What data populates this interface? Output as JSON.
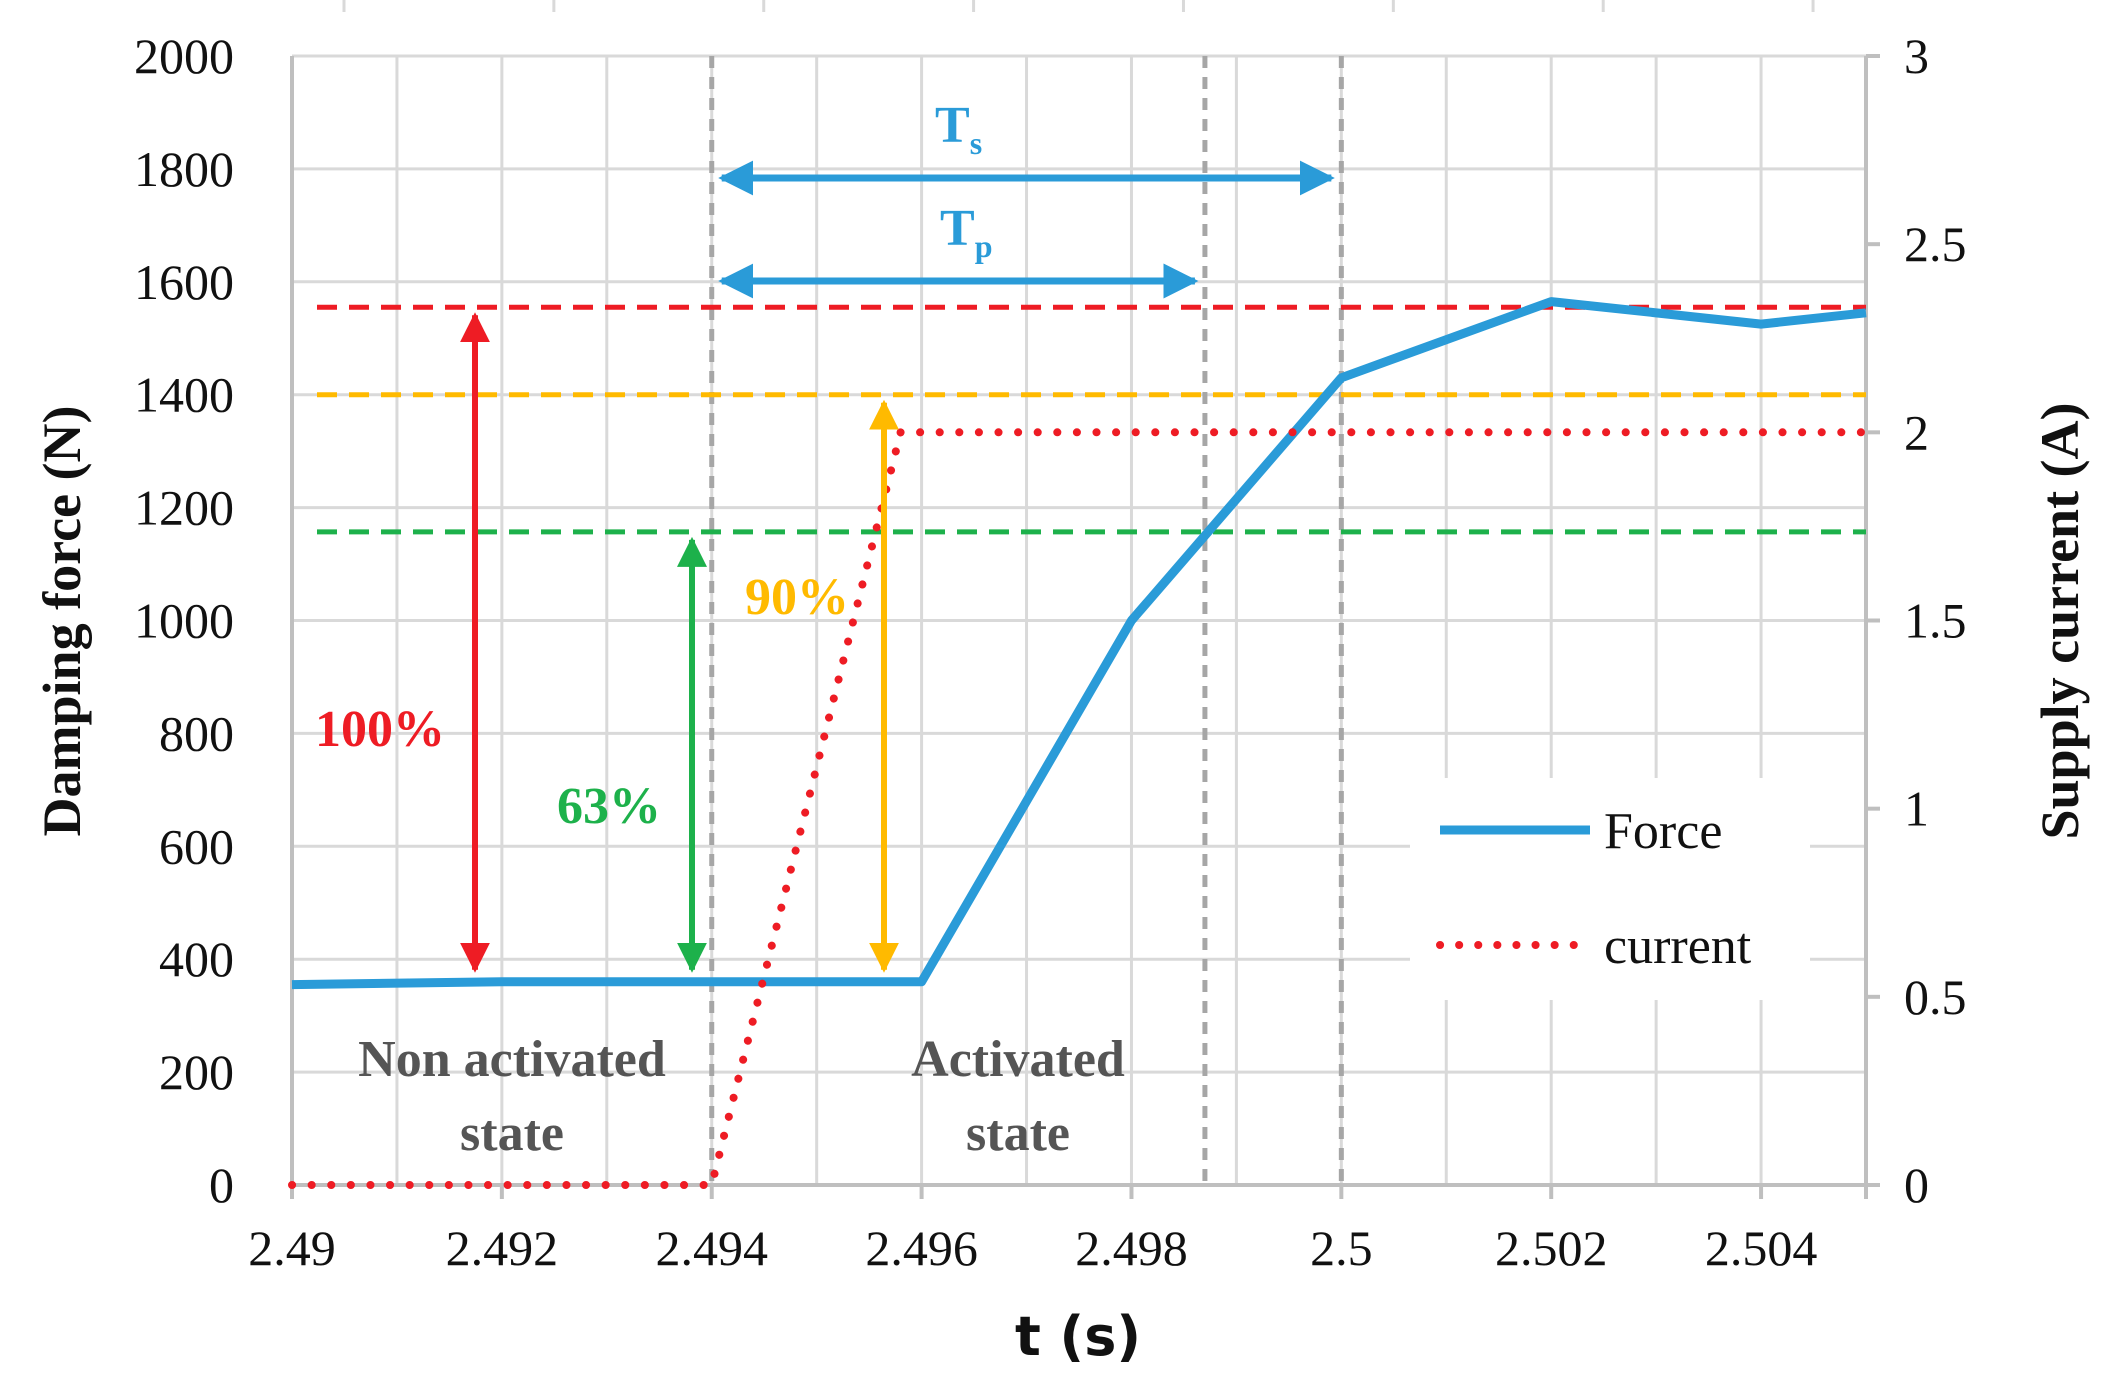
{
  "chart_data": {
    "type": "line",
    "x_label": "t (s)",
    "y_label_left": "Damping force (N)",
    "y_label_right": "Supply current (A)",
    "xlim": [
      2.49,
      2.505
    ],
    "ylim_left": [
      0,
      2000
    ],
    "ylim_right": [
      0,
      3
    ],
    "x_ticks": [
      2.49,
      2.492,
      2.494,
      2.496,
      2.498,
      2.5,
      2.502,
      2.504
    ],
    "x_tick_labels": [
      "2.49",
      "2.492",
      "2.494",
      "2.496",
      "2.498",
      "2.5",
      "2.502",
      "2.504"
    ],
    "y_ticks_left": [
      0,
      200,
      400,
      600,
      800,
      1000,
      1200,
      1400,
      1600,
      1800,
      2000
    ],
    "y_tick_labels_left": [
      "0",
      "200",
      "400",
      "600",
      "800",
      "1000",
      "1200",
      "1400",
      "1600",
      "1800",
      "2000"
    ],
    "y_ticks_right": [
      0,
      0.5,
      1,
      1.5,
      2,
      2.5,
      3
    ],
    "y_tick_labels_right": [
      "0",
      "0.5",
      "1",
      "1.5",
      "2",
      "2.5",
      "3"
    ],
    "grid": true,
    "series": [
      {
        "name": "Force",
        "axis": "left",
        "style": "solid",
        "color": "#2a9bd8",
        "x": [
          2.49,
          2.492,
          2.494,
          2.496,
          2.498,
          2.5,
          2.502,
          2.504,
          2.505
        ],
        "y": [
          355,
          360,
          360,
          360,
          1000,
          1430,
          1565,
          1525,
          1545
        ]
      },
      {
        "name": "current",
        "axis": "right",
        "style": "dotted",
        "color": "#ee1c24",
        "x": [
          2.49,
          2.494,
          2.4958,
          2.505
        ],
        "y": [
          0,
          0,
          2.0,
          2.0
        ]
      }
    ],
    "reference_lines": [
      {
        "axis": "left",
        "y": 1555,
        "color": "#ee1c24",
        "label": "100% level"
      },
      {
        "axis": "left",
        "y": 1400,
        "color": "#ffba00",
        "label": "90% level"
      },
      {
        "axis": "left",
        "y": 1157,
        "color": "#1db14b",
        "label": "63% level"
      }
    ],
    "vertical_lines": [
      2.494,
      2.4987,
      2.5
    ],
    "annotations": {
      "pct_100": "100%",
      "pct_63": "63%",
      "pct_90": "90%",
      "ts_main": "T",
      "ts_sub": "s",
      "tp_main": "T",
      "tp_sub": "p",
      "non_activated_1": "Non activated",
      "non_activated_2": "state",
      "activated_1": "Activated",
      "activated_2": "state"
    },
    "legend": {
      "position": "right",
      "entries": [
        "Force",
        "current"
      ]
    }
  }
}
